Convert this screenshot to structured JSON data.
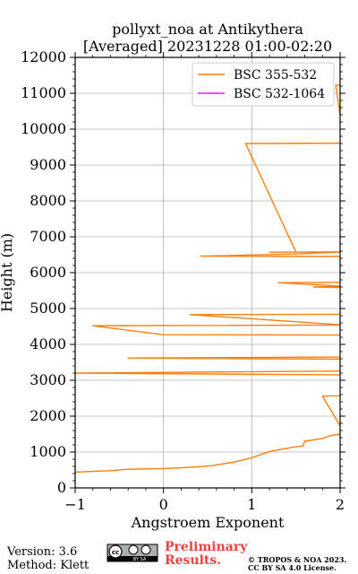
{
  "chart_data": {
    "type": "line",
    "title_line1": "pollyxt_noa at Antikythera",
    "title_line2": "[Averaged] 20231228 01:00-02:20",
    "xlabel": "Angstroem Exponent",
    "ylabel": "Height (m)",
    "xlim": [
      -1,
      2
    ],
    "ylim": [
      0,
      12000
    ],
    "x_ticks": [
      "−1",
      "0",
      "1",
      "2"
    ],
    "x_tick_values": [
      -1,
      0,
      1,
      2
    ],
    "y_ticks": [
      "0",
      "1000",
      "2000",
      "3000",
      "4000",
      "5000",
      "6000",
      "7000",
      "8000",
      "9000",
      "10000",
      "11000",
      "12000"
    ],
    "y_tick_values": [
      0,
      1000,
      2000,
      3000,
      4000,
      5000,
      6000,
      7000,
      8000,
      9000,
      10000,
      11000,
      12000
    ],
    "grid": true,
    "legend_placement": "top-right",
    "series": [
      {
        "name": "BSC 355-532",
        "color": "#ff7f0e",
        "points": [
          [
            -1.0,
            440
          ],
          [
            -0.8,
            460
          ],
          [
            -0.6,
            480
          ],
          [
            -0.4,
            520
          ],
          [
            -0.2,
            530
          ],
          [
            0.0,
            540
          ],
          [
            0.2,
            560
          ],
          [
            0.4,
            590
          ],
          [
            0.55,
            620
          ],
          [
            0.65,
            660
          ],
          [
            0.8,
            720
          ],
          [
            0.9,
            780
          ],
          [
            1.0,
            840
          ],
          [
            1.1,
            930
          ],
          [
            1.2,
            1010
          ],
          [
            1.3,
            1060
          ],
          [
            1.4,
            1100
          ],
          [
            1.45,
            1130
          ],
          [
            1.58,
            1170
          ],
          [
            1.6,
            1300
          ],
          [
            1.7,
            1340
          ],
          [
            1.8,
            1380
          ],
          [
            1.9,
            1460
          ],
          [
            2.0,
            1500
          ],
          [
            2.05,
            1520
          ],
          [
            1.8,
            2560
          ],
          [
            2.05,
            2570
          ],
          [
            2.05,
            3150
          ],
          [
            -1.0,
            3200
          ],
          [
            2.05,
            3260
          ],
          [
            2.05,
            3590
          ],
          [
            -0.4,
            3620
          ],
          [
            2.05,
            3650
          ],
          [
            2.05,
            4260
          ],
          [
            0.0,
            4270
          ],
          [
            -0.8,
            4520
          ],
          [
            2.05,
            4540
          ],
          [
            0.3,
            4830
          ],
          [
            2.05,
            4840
          ],
          [
            2.05,
            5580
          ],
          [
            1.7,
            5600
          ],
          [
            2.05,
            5620
          ],
          [
            1.3,
            5720
          ],
          [
            2.05,
            5730
          ],
          [
            2.05,
            6450
          ],
          [
            0.42,
            6460
          ],
          [
            1.5,
            6520
          ],
          [
            2.05,
            6580
          ],
          [
            1.2,
            6570
          ],
          [
            1.5,
            6575
          ],
          [
            0.93,
            9600
          ],
          [
            2.05,
            9610
          ],
          [
            1.95,
            11220
          ],
          [
            2.05,
            11230
          ]
        ]
      },
      {
        "name": "BSC 532-1064",
        "color": "#e020e0",
        "points": []
      }
    ]
  },
  "footer": {
    "version": "Version: 3.6",
    "method": "Method: Klett",
    "preliminary_line1": "Preliminary",
    "preliminary_line2": "Results.",
    "copyright_line1": "© TROPOS & NOA 2023.",
    "copyright_line2": "CC BY SA 4.0 License.",
    "license_badge_text": "BY SA"
  }
}
